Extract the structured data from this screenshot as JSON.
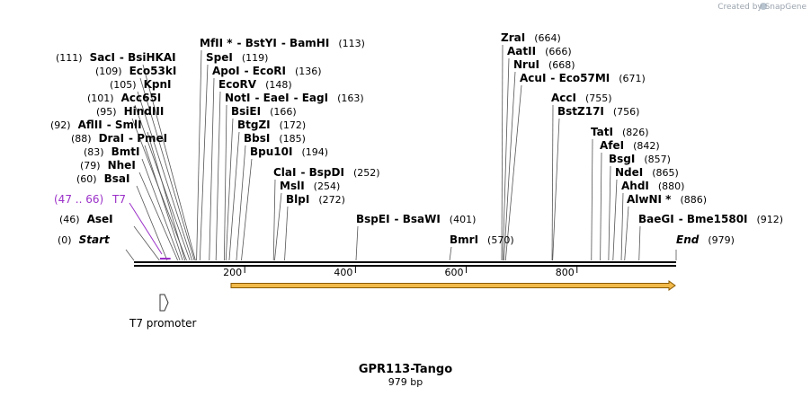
{
  "credit": "Created by  SnapGene",
  "title": "GPR113-Tango",
  "length_label": "979 bp",
  "bp_length": 979,
  "feature": {
    "label": "T7 promoter",
    "start": 47,
    "end": 66
  },
  "primer": {
    "range": "(47 .. 66)",
    "name": "T7",
    "color": "#9b30c8"
  },
  "ticks": [
    {
      "bp": 200,
      "label": "200"
    },
    {
      "bp": 400,
      "label": "400"
    },
    {
      "bp": 600,
      "label": "600"
    },
    {
      "bp": 800,
      "label": "800"
    }
  ],
  "sites": [
    {
      "bp": 0,
      "names": [
        "Start"
      ],
      "pos": "(0)",
      "style": "italic"
    },
    {
      "bp": 46,
      "names": [
        "AseI"
      ],
      "pos": "(46)"
    },
    {
      "bp": 60,
      "names": [
        "BsaI"
      ],
      "pos": "(60)"
    },
    {
      "bp": 79,
      "names": [
        "NheI"
      ],
      "pos": "(79)"
    },
    {
      "bp": 83,
      "names": [
        "BmtI"
      ],
      "pos": "(83)"
    },
    {
      "bp": 88,
      "names": [
        "DraI",
        "PmeI"
      ],
      "pos": "(88)"
    },
    {
      "bp": 92,
      "names": [
        "AflII",
        "SmlI"
      ],
      "pos": "(92)"
    },
    {
      "bp": 95,
      "names": [
        "HindIII"
      ],
      "pos": "(95)"
    },
    {
      "bp": 101,
      "names": [
        "Acc65I"
      ],
      "pos": "(101)"
    },
    {
      "bp": 105,
      "names": [
        "KpnI"
      ],
      "pos": "(105)"
    },
    {
      "bp": 109,
      "names": [
        "Eco53kI"
      ],
      "pos": "(109)"
    },
    {
      "bp": 111,
      "names": [
        "SacI",
        "BsiHKAI"
      ],
      "pos": "(111)"
    },
    {
      "bp": 113,
      "names": [
        "MfII *",
        "BstYI",
        "BamHI"
      ],
      "pos": "(113)"
    },
    {
      "bp": 119,
      "names": [
        "SpeI"
      ],
      "pos": "(119)"
    },
    {
      "bp": 136,
      "names": [
        "ApoI",
        "EcoRI"
      ],
      "pos": "(136)"
    },
    {
      "bp": 148,
      "names": [
        "EcoRV"
      ],
      "pos": "(148)"
    },
    {
      "bp": 163,
      "names": [
        "NotI",
        "EaeI",
        "EagI"
      ],
      "pos": "(163)"
    },
    {
      "bp": 166,
      "names": [
        "BsiEI"
      ],
      "pos": "(166)"
    },
    {
      "bp": 172,
      "names": [
        "BtgZI"
      ],
      "pos": "(172)"
    },
    {
      "bp": 185,
      "names": [
        "BbsI"
      ],
      "pos": "(185)"
    },
    {
      "bp": 194,
      "names": [
        "Bpu10I"
      ],
      "pos": "(194)"
    },
    {
      "bp": 252,
      "names": [
        "ClaI",
        "BspDI"
      ],
      "pos": "(252)"
    },
    {
      "bp": 254,
      "names": [
        "MslI"
      ],
      "pos": "(254)"
    },
    {
      "bp": 272,
      "names": [
        "BlpI"
      ],
      "pos": "(272)"
    },
    {
      "bp": 401,
      "names": [
        "BspEI",
        "BsaWI"
      ],
      "pos": "(401)"
    },
    {
      "bp": 570,
      "names": [
        "BmrI"
      ],
      "pos": "(570)"
    },
    {
      "bp": 664,
      "names": [
        "ZraI"
      ],
      "pos": "(664)"
    },
    {
      "bp": 666,
      "names": [
        "AatII"
      ],
      "pos": "(666)"
    },
    {
      "bp": 668,
      "names": [
        "NruI"
      ],
      "pos": "(668)"
    },
    {
      "bp": 671,
      "names": [
        "AcuI",
        "Eco57MI"
      ],
      "pos": "(671)"
    },
    {
      "bp": 755,
      "names": [
        "AccI"
      ],
      "pos": "(755)"
    },
    {
      "bp": 756,
      "names": [
        "BstZ17I"
      ],
      "pos": "(756)"
    },
    {
      "bp": 826,
      "names": [
        "TatI"
      ],
      "pos": "(826)"
    },
    {
      "bp": 842,
      "names": [
        "AfeI"
      ],
      "pos": "(842)"
    },
    {
      "bp": 857,
      "names": [
        "BsgI"
      ],
      "pos": "(857)"
    },
    {
      "bp": 865,
      "names": [
        "NdeI"
      ],
      "pos": "(865)"
    },
    {
      "bp": 880,
      "names": [
        "AhdI"
      ],
      "pos": "(880)"
    },
    {
      "bp": 886,
      "names": [
        "AlwNI *"
      ],
      "pos": "(886)"
    },
    {
      "bp": 912,
      "names": [
        "BaeGI",
        "Bme1580I"
      ],
      "pos": "(912)"
    },
    {
      "bp": 979,
      "names": [
        "End"
      ],
      "pos": "(979)",
      "style": "italic"
    }
  ]
}
